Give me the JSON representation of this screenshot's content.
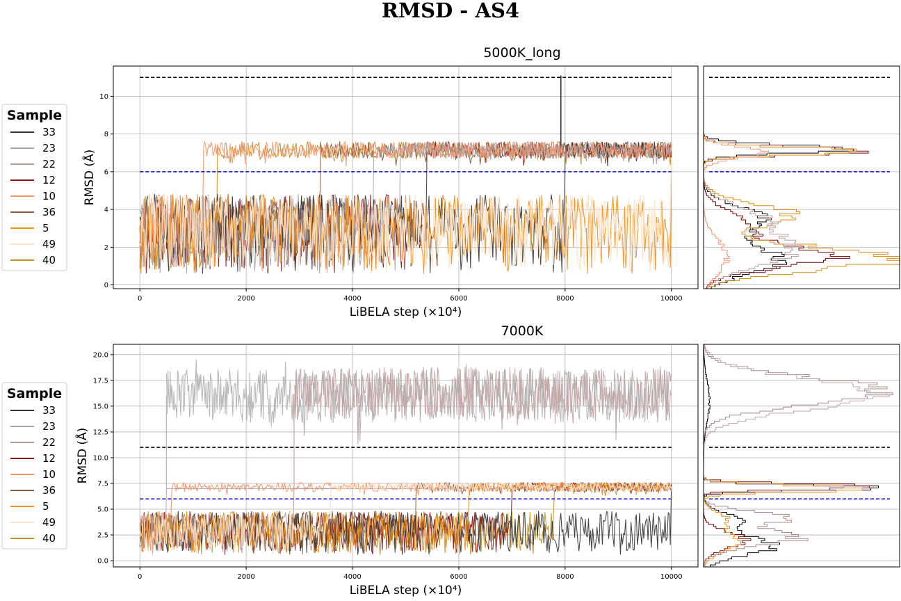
{
  "figure": {
    "title": "RMSD - AS4"
  },
  "legend_title": "Sample",
  "chart_data": [
    {
      "type": "line",
      "title": "5000K_long",
      "xlabel": "LiBELA step (×10⁴)",
      "ylabel": "RMSD (Å)",
      "xlim": [
        -500,
        10500
      ],
      "ylim": [
        -0.2,
        11.6
      ],
      "xticks": [
        "0",
        "2000",
        "4000",
        "6000",
        "8000",
        "10000"
      ],
      "yticks": [
        "0",
        "2",
        "4",
        "6",
        "8",
        "10"
      ],
      "grid": true,
      "legend_position": "outside-left",
      "thresholds": [
        {
          "y": 11,
          "color": "#000000",
          "style": "dashed"
        },
        {
          "y": 6,
          "color": "#0000ee",
          "style": "dashed"
        }
      ],
      "series": [
        {
          "name": "33",
          "color": "#333333",
          "low_until": 8000,
          "high_from": 8000,
          "spike": {
            "x": 7920,
            "y": 11.1
          }
        },
        {
          "name": "23",
          "color": "#a8a8a8",
          "low_until": 4400,
          "high_from": 4400
        },
        {
          "name": "22",
          "color": "#b89a9a",
          "low_until": 4900,
          "high_from": 4900
        },
        {
          "name": "12",
          "color": "#8b1a1a",
          "low_until": 5400,
          "high_from": 5400
        },
        {
          "name": "10",
          "color": "#f4946a",
          "low_until": 1200,
          "high_from": 1200
        },
        {
          "name": "36",
          "color": "#8c5a36",
          "low_until": 3400,
          "high_from": 3400
        },
        {
          "name": "5",
          "color": "#f08c1a",
          "low_until": 10000,
          "high_from": 10000
        },
        {
          "name": "49",
          "color": "#fbe3c8",
          "low_until": 10000,
          "high_from": 10000
        },
        {
          "name": "40",
          "color": "#c48e24",
          "low_until": 1450,
          "high_from": 1450
        }
      ],
      "hist": {
        "xmax": 1.0,
        "lines": [
          {
            "name": "33",
            "color": "#000000",
            "peaks": [
              [
                1.3,
                0.4,
                0.7
              ],
              [
                3.4,
                0.32,
                0.7
              ],
              [
                7.2,
                0.78,
                0.22
              ]
            ]
          },
          {
            "name": "12",
            "color": "#7a0000",
            "peaks": [
              [
                1.5,
                0.65,
                0.6
              ],
              [
                3.2,
                0.22,
                0.7
              ],
              [
                7.1,
                0.88,
                0.2
              ]
            ]
          },
          {
            "name": "40",
            "color": "#d88a10",
            "peaks": [
              [
                1.4,
                1.0,
                0.6
              ],
              [
                3.7,
                0.45,
                0.6
              ],
              [
                7.1,
                0.8,
                0.2
              ]
            ]
          },
          {
            "name": "22",
            "color": "#b89a9a",
            "peaks": [
              [
                1.8,
                0.45,
                0.8
              ],
              [
                3.5,
                0.28,
                0.7
              ]
            ]
          },
          {
            "name": "10",
            "color": "#f4946a",
            "peaks": [
              [
                1.5,
                0.12,
                0.9
              ],
              [
                7.0,
                0.3,
                0.3
              ]
            ]
          }
        ]
      }
    },
    {
      "type": "line",
      "title": "7000K",
      "xlabel": "LiBELA step (×10⁴)",
      "ylabel": "RMSD (Å)",
      "xlim": [
        -500,
        10500
      ],
      "ylim": [
        -0.6,
        21
      ],
      "xticks": [
        "0",
        "2000",
        "4000",
        "6000",
        "8000",
        "10000"
      ],
      "yticks": [
        "0.0",
        "2.5",
        "5.0",
        "7.5",
        "10.0",
        "12.5",
        "15.0",
        "17.5",
        "20.0"
      ],
      "grid": true,
      "legend_position": "outside-left",
      "thresholds": [
        {
          "y": 11,
          "color": "#000000",
          "style": "dashed"
        },
        {
          "y": 6,
          "color": "#0000ee",
          "style": "dashed"
        }
      ],
      "unfolded_bands": [
        {
          "from": 500,
          "to": 10000,
          "center": 16,
          "color": "#b4b4b4"
        },
        {
          "from": 2900,
          "to": 10000,
          "center": 16.2,
          "color": "#c4a4a4"
        }
      ],
      "series": [
        {
          "name": "33",
          "color": "#333333",
          "low_until": 10000,
          "high_from": 10000
        },
        {
          "name": "23",
          "color": "#a8a8a8",
          "low_until": 500,
          "high_from": 10000
        },
        {
          "name": "22",
          "color": "#b89a9a",
          "low_until": 2900,
          "high_from": 10000
        },
        {
          "name": "12",
          "color": "#8b1a1a",
          "low_until": 7000,
          "high_from": 7000
        },
        {
          "name": "10",
          "color": "#f4946a",
          "low_until": 600,
          "high_from": 600
        },
        {
          "name": "36",
          "color": "#8c5a36",
          "low_until": 5200,
          "high_from": 5200
        },
        {
          "name": "5",
          "color": "#f08c1a",
          "low_until": 6200,
          "high_from": 6200
        },
        {
          "name": "49",
          "color": "#fbe3c8",
          "low_until": 3600,
          "high_from": 3600
        },
        {
          "name": "40",
          "color": "#c48e24",
          "low_until": 7800,
          "high_from": 7800
        }
      ],
      "hist": {
        "xmax": 1.0,
        "lines": [
          {
            "name": "33",
            "color": "#000000",
            "peaks": [
              [
                1.4,
                0.35,
                0.9
              ],
              [
                3.8,
                0.18,
                0.8
              ],
              [
                7.1,
                0.88,
                0.25
              ],
              [
                15.5,
                0.03,
                2.0
              ]
            ]
          },
          {
            "name": "12",
            "color": "#7a0000",
            "peaks": [
              [
                2.0,
                0.22,
                0.8
              ],
              [
                7.2,
                0.92,
                0.25
              ]
            ]
          },
          {
            "name": "10",
            "color": "#f08c1a",
            "peaks": [
              [
                1.8,
                0.18,
                0.9
              ],
              [
                4.0,
                0.12,
                0.7
              ],
              [
                7.0,
                0.85,
                0.3
              ]
            ]
          },
          {
            "name": "22",
            "color": "#a88888",
            "peaks": [
              [
                2.2,
                0.48,
                0.8
              ],
              [
                4.2,
                0.42,
                0.6
              ],
              [
                16.5,
                0.92,
                1.3
              ]
            ]
          },
          {
            "name": "23",
            "color": "#c0a8a8",
            "peaks": [
              [
                16.2,
                0.85,
                1.5
              ]
            ]
          }
        ]
      }
    }
  ]
}
